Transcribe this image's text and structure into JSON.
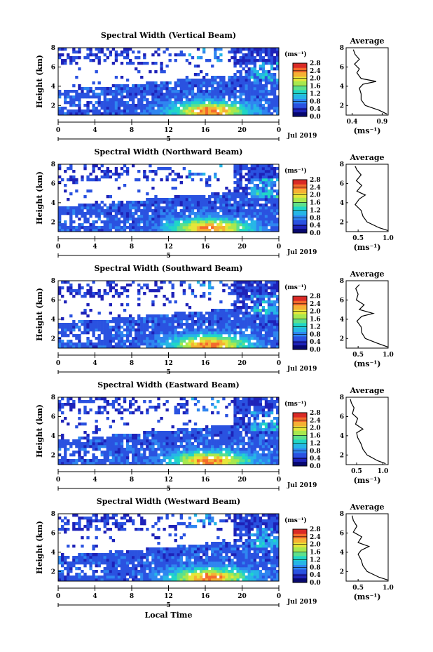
{
  "figure": {
    "xlabel_bottom": "Local Time",
    "colorscale": [
      "#08086e",
      "#1e22b8",
      "#2a52e0",
      "#2f86f0",
      "#26b6e6",
      "#20d6c6",
      "#5ee08a",
      "#a8e84e",
      "#e6e63a",
      "#f6b034",
      "#f46a2c",
      "#d92a26"
    ],
    "white_gap_color": "#ffffff"
  },
  "chart_data": [
    {
      "type": "heatmap",
      "title": "Spectral Width (Vertical Beam)",
      "xlabel": "",
      "ylabel": "Height (km)",
      "x_ticks": [
        "0",
        "4",
        "8",
        "12",
        "16",
        "20",
        "0"
      ],
      "x_range": [
        0,
        24
      ],
      "y_ticks": [
        "2",
        "4",
        "6",
        "8"
      ],
      "y_range": [
        1,
        8
      ],
      "date_label": "Jul 2019",
      "day_label": "5",
      "colorbar": {
        "label": "(ms⁻¹)",
        "ticks": [
          "0.0",
          "0.4",
          "0.8",
          "1.2",
          "1.6",
          "2.0",
          "2.4",
          "2.8"
        ],
        "range": [
          0,
          2.8
        ]
      },
      "profile": {
        "title": "Average",
        "xlabel": "(ms⁻¹)",
        "x_ticks": [
          "0.4",
          "0.9"
        ],
        "x_range": [
          0.3,
          1.0
        ],
        "y_ticks": [
          "2",
          "4",
          "6",
          "8"
        ],
        "y_range": [
          1,
          8
        ],
        "points": [
          {
            "x": 0.98,
            "y": 1.1
          },
          {
            "x": 0.85,
            "y": 1.5
          },
          {
            "x": 0.62,
            "y": 2.0
          },
          {
            "x": 0.55,
            "y": 2.6
          },
          {
            "x": 0.55,
            "y": 3.2
          },
          {
            "x": 0.52,
            "y": 3.8
          },
          {
            "x": 0.58,
            "y": 4.2
          },
          {
            "x": 0.8,
            "y": 4.5
          },
          {
            "x": 0.55,
            "y": 4.8
          },
          {
            "x": 0.48,
            "y": 5.4
          },
          {
            "x": 0.52,
            "y": 5.8
          },
          {
            "x": 0.44,
            "y": 6.3
          },
          {
            "x": 0.52,
            "y": 6.8
          },
          {
            "x": 0.45,
            "y": 7.3
          },
          {
            "x": 0.42,
            "y": 7.8
          }
        ]
      }
    },
    {
      "type": "heatmap",
      "title": "Spectral Width (Northward Beam)",
      "xlabel": "",
      "ylabel": "Height (km)",
      "x_ticks": [
        "0",
        "4",
        "8",
        "12",
        "16",
        "20",
        "0"
      ],
      "x_range": [
        0,
        24
      ],
      "y_ticks": [
        "2",
        "4",
        "6",
        "8"
      ],
      "y_range": [
        1,
        8
      ],
      "date_label": "Jul 2019",
      "day_label": "5",
      "colorbar": {
        "label": "(ms⁻¹)",
        "ticks": [
          "0.0",
          "0.4",
          "0.8",
          "1.2",
          "1.6",
          "2.0",
          "2.4",
          "2.8"
        ],
        "range": [
          0,
          2.8
        ]
      },
      "profile": {
        "title": "Average",
        "xlabel": "(ms⁻¹)",
        "x_ticks": [
          "0.5",
          "1.0"
        ],
        "x_range": [
          0.3,
          1.0
        ],
        "y_ticks": [
          "2",
          "4",
          "6",
          "8"
        ],
        "y_range": [
          1,
          8
        ],
        "points": [
          {
            "x": 1.0,
            "y": 1.1
          },
          {
            "x": 0.85,
            "y": 1.4
          },
          {
            "x": 0.65,
            "y": 2.0
          },
          {
            "x": 0.58,
            "y": 2.6
          },
          {
            "x": 0.55,
            "y": 3.2
          },
          {
            "x": 0.45,
            "y": 3.8
          },
          {
            "x": 0.52,
            "y": 4.4
          },
          {
            "x": 0.62,
            "y": 4.8
          },
          {
            "x": 0.48,
            "y": 5.2
          },
          {
            "x": 0.56,
            "y": 5.8
          },
          {
            "x": 0.47,
            "y": 6.3
          },
          {
            "x": 0.55,
            "y": 6.9
          },
          {
            "x": 0.48,
            "y": 7.4
          },
          {
            "x": 0.45,
            "y": 7.8
          }
        ]
      }
    },
    {
      "type": "heatmap",
      "title": "Spectral Width (Southward Beam)",
      "xlabel": "",
      "ylabel": "Height (km)",
      "x_ticks": [
        "0",
        "4",
        "8",
        "12",
        "16",
        "20",
        "0"
      ],
      "x_range": [
        0,
        24
      ],
      "y_ticks": [
        "2",
        "4",
        "6",
        "8"
      ],
      "y_range": [
        1,
        8
      ],
      "date_label": "Jul 2019",
      "day_label": "5",
      "colorbar": {
        "label": "(ms⁻¹)",
        "ticks": [
          "0.0",
          "0.4",
          "0.8",
          "1.2",
          "1.6",
          "2.0",
          "2.4",
          "2.8"
        ],
        "range": [
          0,
          2.8
        ]
      },
      "profile": {
        "title": "Average",
        "xlabel": "(ms⁻¹)",
        "x_ticks": [
          "0.5",
          "1.0"
        ],
        "x_range": [
          0.3,
          1.0
        ],
        "y_ticks": [
          "2",
          "4",
          "6",
          "8"
        ],
        "y_range": [
          1,
          8
        ],
        "points": [
          {
            "x": 1.0,
            "y": 1.1
          },
          {
            "x": 0.82,
            "y": 1.5
          },
          {
            "x": 0.62,
            "y": 2.0
          },
          {
            "x": 0.56,
            "y": 2.6
          },
          {
            "x": 0.55,
            "y": 3.2
          },
          {
            "x": 0.48,
            "y": 3.8
          },
          {
            "x": 0.56,
            "y": 4.3
          },
          {
            "x": 0.75,
            "y": 4.6
          },
          {
            "x": 0.52,
            "y": 5.0
          },
          {
            "x": 0.6,
            "y": 5.5
          },
          {
            "x": 0.47,
            "y": 6.0
          },
          {
            "x": 0.5,
            "y": 6.6
          },
          {
            "x": 0.46,
            "y": 7.2
          },
          {
            "x": 0.52,
            "y": 7.6
          }
        ]
      }
    },
    {
      "type": "heatmap",
      "title": "Spectral Width (Eastward Beam)",
      "xlabel": "",
      "ylabel": "Height (km)",
      "x_ticks": [
        "0",
        "4",
        "8",
        "12",
        "16",
        "20",
        "0"
      ],
      "x_range": [
        0,
        24
      ],
      "y_ticks": [
        "2",
        "4",
        "6",
        "8"
      ],
      "y_range": [
        1,
        8
      ],
      "date_label": "Jul 2019",
      "day_label": "5",
      "colorbar": {
        "label": "(ms⁻¹)",
        "ticks": [
          "0.0",
          "0.4",
          "0.8",
          "1.2",
          "1.6",
          "2.0",
          "2.4",
          "2.8"
        ],
        "range": [
          0,
          2.8
        ]
      },
      "profile": {
        "title": "Average",
        "xlabel": "(ms⁻¹)",
        "x_ticks": [
          "0.5",
          "1.0"
        ],
        "x_range": [
          0.3,
          1.1
        ],
        "y_ticks": [
          "2",
          "4",
          "6",
          "8"
        ],
        "y_range": [
          1,
          8
        ],
        "points": [
          {
            "x": 1.05,
            "y": 1.1
          },
          {
            "x": 0.9,
            "y": 1.4
          },
          {
            "x": 0.7,
            "y": 2.0
          },
          {
            "x": 0.62,
            "y": 2.6
          },
          {
            "x": 0.58,
            "y": 3.2
          },
          {
            "x": 0.52,
            "y": 3.8
          },
          {
            "x": 0.5,
            "y": 4.3
          },
          {
            "x": 0.62,
            "y": 4.7
          },
          {
            "x": 0.48,
            "y": 5.2
          },
          {
            "x": 0.52,
            "y": 5.8
          },
          {
            "x": 0.42,
            "y": 6.3
          },
          {
            "x": 0.45,
            "y": 6.9
          },
          {
            "x": 0.4,
            "y": 7.4
          },
          {
            "x": 0.38,
            "y": 7.8
          }
        ]
      }
    },
    {
      "type": "heatmap",
      "title": "Spectral Width (Westward Beam)",
      "xlabel": "Local Time",
      "ylabel": "Height (km)",
      "x_ticks": [
        "0",
        "4",
        "8",
        "12",
        "16",
        "20",
        "0"
      ],
      "x_range": [
        0,
        24
      ],
      "y_ticks": [
        "2",
        "4",
        "6",
        "8"
      ],
      "y_range": [
        1,
        8
      ],
      "date_label": "Jul 2019",
      "day_label": "5",
      "colorbar": {
        "label": "(ms⁻¹)",
        "ticks": [
          "0.0",
          "0.4",
          "0.8",
          "1.2",
          "1.6",
          "2.0",
          "2.4",
          "2.8"
        ],
        "range": [
          0,
          2.8
        ]
      },
      "profile": {
        "title": "Average",
        "xlabel": "(ms⁻¹)",
        "x_ticks": [
          "0.5",
          "1.0"
        ],
        "x_range": [
          0.3,
          1.0
        ],
        "y_ticks": [
          "2",
          "4",
          "6",
          "8"
        ],
        "y_range": [
          1,
          8
        ],
        "points": [
          {
            "x": 1.0,
            "y": 1.1
          },
          {
            "x": 0.85,
            "y": 1.4
          },
          {
            "x": 0.65,
            "y": 2.0
          },
          {
            "x": 0.58,
            "y": 2.6
          },
          {
            "x": 0.55,
            "y": 3.2
          },
          {
            "x": 0.5,
            "y": 3.8
          },
          {
            "x": 0.55,
            "y": 4.2
          },
          {
            "x": 0.68,
            "y": 4.6
          },
          {
            "x": 0.5,
            "y": 5.0
          },
          {
            "x": 0.56,
            "y": 5.6
          },
          {
            "x": 0.42,
            "y": 6.1
          },
          {
            "x": 0.48,
            "y": 6.7
          },
          {
            "x": 0.42,
            "y": 7.3
          },
          {
            "x": 0.4,
            "y": 7.8
          }
        ]
      }
    }
  ]
}
